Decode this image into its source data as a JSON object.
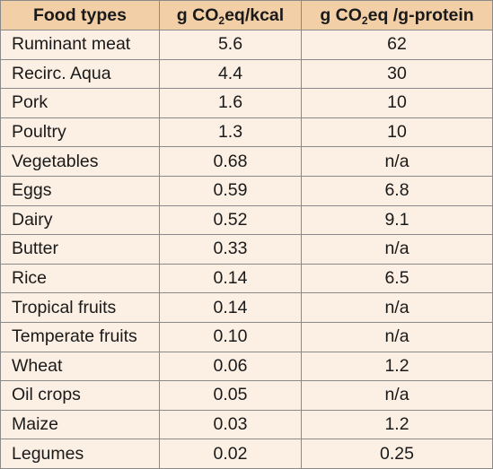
{
  "table": {
    "headers": {
      "food": "Food types",
      "kcal_prefix": "g CO",
      "kcal_sub": "2",
      "kcal_suffix": "eq/kcal",
      "protein_prefix": "g CO",
      "protein_sub": "2",
      "protein_suffix": "eq /g-protein"
    },
    "rows": [
      {
        "food": "Ruminant meat",
        "kcal": "5.6",
        "protein": "62"
      },
      {
        "food": "Recirc. Aqua",
        "kcal": "4.4",
        "protein": "30"
      },
      {
        "food": "Pork",
        "kcal": "1.6",
        "protein": "10"
      },
      {
        "food": "Poultry",
        "kcal": "1.3",
        "protein": "10"
      },
      {
        "food": "Vegetables",
        "kcal": "0.68",
        "protein": "n/a"
      },
      {
        "food": "Eggs",
        "kcal": "0.59",
        "protein": "6.8"
      },
      {
        "food": "Dairy",
        "kcal": "0.52",
        "protein": "9.1"
      },
      {
        "food": "Butter",
        "kcal": "0.33",
        "protein": "n/a"
      },
      {
        "food": "Rice",
        "kcal": "0.14",
        "protein": "6.5"
      },
      {
        "food": "Tropical fruits",
        "kcal": "0.14",
        "protein": "n/a"
      },
      {
        "food": "Temperate fruits",
        "kcal": "0.10",
        "protein": "n/a"
      },
      {
        "food": "Wheat",
        "kcal": "0.06",
        "protein": "1.2"
      },
      {
        "food": "Oil crops",
        "kcal": "0.05",
        "protein": "n/a"
      },
      {
        "food": "Maize",
        "kcal": "0.03",
        "protein": "1.2"
      },
      {
        "food": "Legumes",
        "kcal": "0.02",
        "protein": "0.25"
      }
    ]
  },
  "colors": {
    "header_bg": "#f2cfa6",
    "row_bg": "#fcefe4",
    "border": "#8a8a8a"
  }
}
